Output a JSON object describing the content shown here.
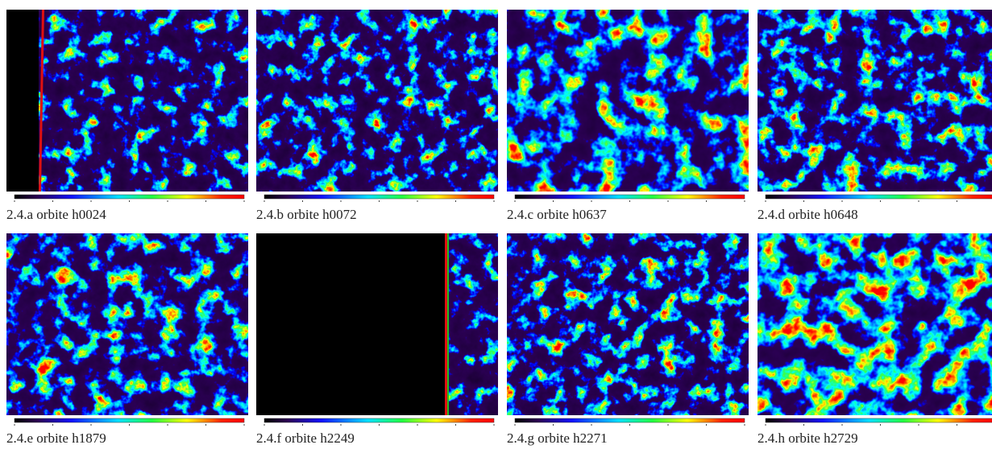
{
  "panels": [
    {
      "caption": "2.4.a orbite h0024"
    },
    {
      "caption": "2.4.b orbite h0072"
    },
    {
      "caption": "2.4.c orbite h0637"
    },
    {
      "caption": "2.4.d orbite h0648"
    },
    {
      "caption": "2.4.e orbite h1879"
    },
    {
      "caption": "2.4.f orbite h2249"
    },
    {
      "caption": "2.4.g orbite h2271"
    },
    {
      "caption": "2.4.h orbite h2729"
    }
  ]
}
